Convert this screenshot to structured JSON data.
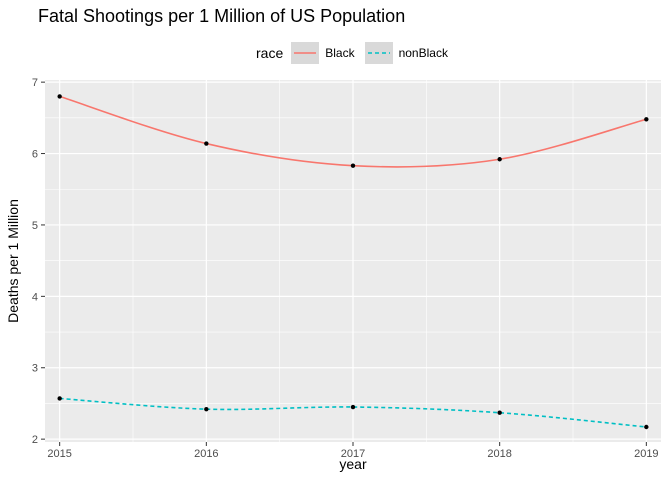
{
  "chart_data": {
    "type": "line",
    "title": "Fatal Shootings per 1 Million of US Population",
    "xlabel": "year",
    "ylabel": "Deaths per 1 Million",
    "x": [
      2015,
      2016,
      2017,
      2018,
      2019
    ],
    "xlim": [
      2014.9,
      2019.1
    ],
    "ylim": [
      1.96,
      7.03
    ],
    "yticks": [
      2,
      3,
      4,
      5,
      6,
      7
    ],
    "legend_title": "race",
    "legend_position": "top",
    "grid": true,
    "series": [
      {
        "name": "Black",
        "values": [
          6.8,
          6.14,
          5.83,
          5.92,
          6.48
        ],
        "color": "#F8766D",
        "linestyle": "solid"
      },
      {
        "name": "nonBlack",
        "values": [
          2.57,
          2.42,
          2.45,
          2.37,
          2.17
        ],
        "color": "#00BFC4",
        "linestyle": "dashed"
      }
    ],
    "point_color": "#000000",
    "panel_background": "#ebebeb",
    "grid_color": "#ffffff"
  }
}
